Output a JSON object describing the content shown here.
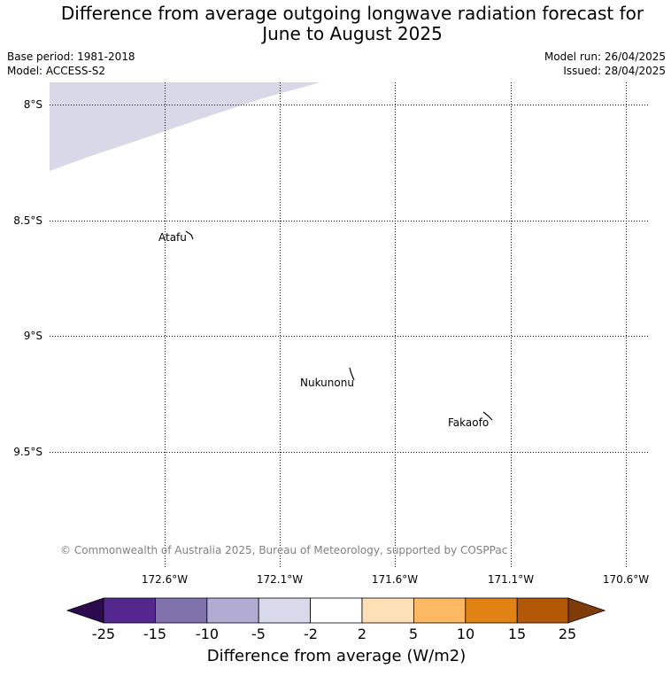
{
  "title": "Difference from average outgoing longwave radiation forecast for\nJune to August 2025",
  "meta_left": [
    "Base period: 1981-2018",
    "Model: ACCESS-S2"
  ],
  "meta_right": [
    "Model run: 26/04/2025",
    "Issued: 28/04/2025"
  ],
  "map": {
    "lat_labels": [
      "8°S",
      "8.5°S",
      "9°S",
      "9.5°S"
    ],
    "lon_labels": [
      "172.6°W",
      "172.1°W",
      "171.6°W",
      "171.1°W",
      "170.6°W"
    ],
    "places": [
      "Atafu",
      "Nukunonu",
      "Fakaofo"
    ],
    "anomaly_region": {
      "category": "-5 to -2",
      "color": "#d8d8e9"
    },
    "copyright": "© Commonwealth of Australia 2025, Bureau of Meteorology, supported by COSPPac"
  },
  "legend": {
    "ticks": [
      "-25",
      "-15",
      "-10",
      "-5",
      "-2",
      "2",
      "5",
      "10",
      "15",
      "25"
    ],
    "under_color": "#2d0a4d",
    "over_color": "#7f3b08",
    "colors": [
      "#54278f",
      "#8073ac",
      "#b2abd2",
      "#d8daeb",
      "#ffffff",
      "#fee0b6",
      "#fdb863",
      "#e08214",
      "#b35806"
    ],
    "title": "Difference from average (W/m2)"
  }
}
